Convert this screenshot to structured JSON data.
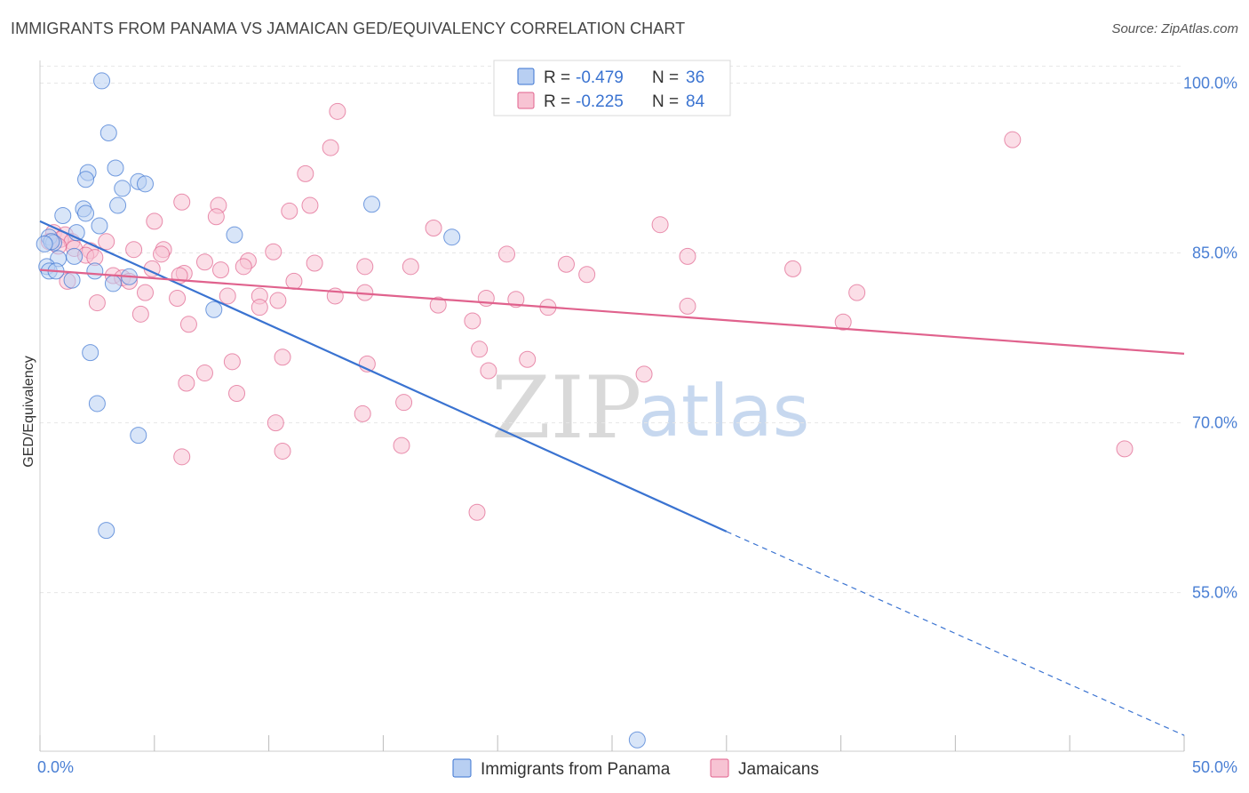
{
  "title": "IMMIGRANTS FROM PANAMA VS JAMAICAN GED/EQUIVALENCY CORRELATION CHART",
  "source": "Source: ZipAtlas.com",
  "watermark": {
    "zip": "ZIP",
    "atlas": "atlas"
  },
  "colors": {
    "blue": "#3a73d1",
    "pink": "#e0628d",
    "blue_fill": "#b8cff2",
    "pink_fill": "#f7c3d3"
  },
  "legend": {
    "r_label": "R =",
    "n_label": "N =",
    "rows": [
      {
        "r": "-0.479",
        "n": "36"
      },
      {
        "r": "-0.225",
        "n": "84"
      }
    ]
  },
  "chart_data": {
    "type": "scatter",
    "xlabel": "",
    "ylabel": "GED/Equivalency",
    "xlim": [
      0,
      50
    ],
    "ylim": [
      41,
      102
    ],
    "y_ticks": [
      100,
      85,
      70,
      55
    ],
    "y_tick_labels": [
      "100.0%",
      "85.0%",
      "70.0%",
      "55.0%"
    ],
    "x_tick_labels": [
      "0.0%",
      "50.0%"
    ],
    "legend_position": "top-center",
    "series": [
      {
        "name": "Immigrants from Panama",
        "color": "#3a73d1",
        "points": [
          [
            2.7,
            100.2
          ],
          [
            3.0,
            95.6
          ],
          [
            3.3,
            92.5
          ],
          [
            4.3,
            91.3
          ],
          [
            4.6,
            91.1
          ],
          [
            2.1,
            92.1
          ],
          [
            2.0,
            91.5
          ],
          [
            3.6,
            90.7
          ],
          [
            3.4,
            89.2
          ],
          [
            1.9,
            88.9
          ],
          [
            2.0,
            88.5
          ],
          [
            1.0,
            88.3
          ],
          [
            14.5,
            89.3
          ],
          [
            2.6,
            87.4
          ],
          [
            1.6,
            86.8
          ],
          [
            0.4,
            86.4
          ],
          [
            0.6,
            85.9
          ],
          [
            0.5,
            86.0
          ],
          [
            8.5,
            86.6
          ],
          [
            18.0,
            86.4
          ],
          [
            1.5,
            84.7
          ],
          [
            0.8,
            84.5
          ],
          [
            0.3,
            83.8
          ],
          [
            0.4,
            83.4
          ],
          [
            0.7,
            83.4
          ],
          [
            2.4,
            83.4
          ],
          [
            3.9,
            82.9
          ],
          [
            1.4,
            82.6
          ],
          [
            3.2,
            82.3
          ],
          [
            7.6,
            80.0
          ],
          [
            2.2,
            76.2
          ],
          [
            2.5,
            71.7
          ],
          [
            4.3,
            68.9
          ],
          [
            2.9,
            60.5
          ],
          [
            26.1,
            42.0
          ],
          [
            0.2,
            85.8
          ]
        ],
        "trend": {
          "x": [
            0,
            30
          ],
          "y": [
            87.8,
            60.4
          ],
          "dashed_to": [
            50,
            42.4
          ]
        }
      },
      {
        "name": "Jamaicans",
        "color": "#e0628d",
        "points": [
          [
            13.0,
            97.5
          ],
          [
            12.7,
            94.3
          ],
          [
            42.5,
            95.0
          ],
          [
            11.6,
            92.0
          ],
          [
            6.2,
            89.5
          ],
          [
            11.8,
            89.2
          ],
          [
            10.9,
            88.7
          ],
          [
            7.8,
            89.2
          ],
          [
            7.7,
            88.2
          ],
          [
            5.0,
            87.8
          ],
          [
            17.2,
            87.2
          ],
          [
            27.1,
            87.5
          ],
          [
            0.6,
            86.8
          ],
          [
            1.1,
            86.6
          ],
          [
            0.9,
            86.2
          ],
          [
            1.4,
            86.0
          ],
          [
            2.9,
            86.0
          ],
          [
            0.4,
            86.0
          ],
          [
            1.5,
            85.4
          ],
          [
            2.2,
            85.2
          ],
          [
            4.1,
            85.3
          ],
          [
            5.4,
            85.3
          ],
          [
            5.3,
            84.9
          ],
          [
            10.2,
            85.1
          ],
          [
            20.4,
            84.9
          ],
          [
            2.0,
            84.8
          ],
          [
            2.4,
            84.6
          ],
          [
            7.2,
            84.2
          ],
          [
            9.1,
            84.3
          ],
          [
            12.0,
            84.1
          ],
          [
            14.2,
            83.8
          ],
          [
            16.2,
            83.8
          ],
          [
            23.0,
            84.0
          ],
          [
            28.3,
            84.7
          ],
          [
            4.9,
            83.6
          ],
          [
            6.3,
            83.2
          ],
          [
            7.9,
            83.5
          ],
          [
            8.9,
            83.8
          ],
          [
            6.1,
            83.0
          ],
          [
            3.2,
            83.0
          ],
          [
            3.6,
            82.8
          ],
          [
            3.9,
            82.5
          ],
          [
            1.2,
            82.5
          ],
          [
            11.1,
            82.5
          ],
          [
            23.9,
            83.1
          ],
          [
            4.6,
            81.5
          ],
          [
            8.2,
            81.2
          ],
          [
            9.6,
            81.2
          ],
          [
            12.9,
            81.2
          ],
          [
            14.2,
            81.5
          ],
          [
            19.5,
            81.0
          ],
          [
            20.8,
            80.9
          ],
          [
            10.4,
            80.8
          ],
          [
            2.5,
            80.6
          ],
          [
            6.0,
            81.0
          ],
          [
            9.6,
            80.2
          ],
          [
            17.4,
            80.4
          ],
          [
            22.2,
            80.2
          ],
          [
            28.3,
            80.3
          ],
          [
            35.7,
            81.5
          ],
          [
            18.9,
            79.0
          ],
          [
            4.4,
            79.6
          ],
          [
            6.5,
            78.7
          ],
          [
            35.1,
            78.9
          ],
          [
            19.2,
            76.5
          ],
          [
            21.3,
            75.6
          ],
          [
            10.6,
            75.8
          ],
          [
            8.4,
            75.4
          ],
          [
            14.3,
            75.2
          ],
          [
            7.2,
            74.4
          ],
          [
            19.6,
            74.6
          ],
          [
            26.4,
            74.3
          ],
          [
            6.4,
            73.5
          ],
          [
            8.6,
            72.6
          ],
          [
            15.9,
            71.8
          ],
          [
            14.1,
            70.8
          ],
          [
            10.3,
            70.0
          ],
          [
            15.8,
            68.0
          ],
          [
            10.6,
            67.5
          ],
          [
            47.4,
            67.7
          ],
          [
            19.1,
            62.1
          ],
          [
            6.2,
            67.0
          ],
          [
            32.9,
            83.6
          ],
          [
            0.8,
            85.6
          ]
        ],
        "trend": {
          "x": [
            0,
            50
          ],
          "y": [
            83.5,
            76.1
          ]
        }
      }
    ]
  }
}
